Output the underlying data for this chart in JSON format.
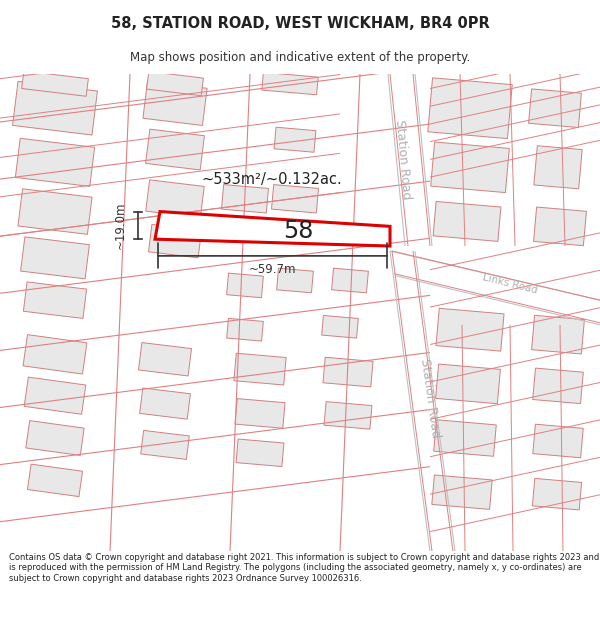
{
  "title": "58, STATION ROAD, WEST WICKHAM, BR4 0PR",
  "subtitle": "Map shows position and indicative extent of the property.",
  "footer": "Contains OS data © Crown copyright and database right 2021. This information is subject to Crown copyright and database rights 2023 and is reproduced with the permission of HM Land Registry. The polygons (including the associated geometry, namely x, y co-ordinates) are subject to Crown copyright and database rights 2023 Ordnance Survey 100026316.",
  "map_bg": "#ffffff",
  "road_line_color": "#e08080",
  "road_label_color": "#b0b0b0",
  "building_fill": "#e8e8e8",
  "building_edge": "#d08080",
  "highlight_color": "#dd0000",
  "dim_color": "#333333",
  "area_text": "~533m²/~0.132ac.",
  "height_text": "~19.0m",
  "width_text": "~59.7m",
  "plot_label": "58",
  "road_label_station_upper": "Station Road",
  "road_label_station_lower": "Station Road",
  "road_label_links": "Links Road"
}
